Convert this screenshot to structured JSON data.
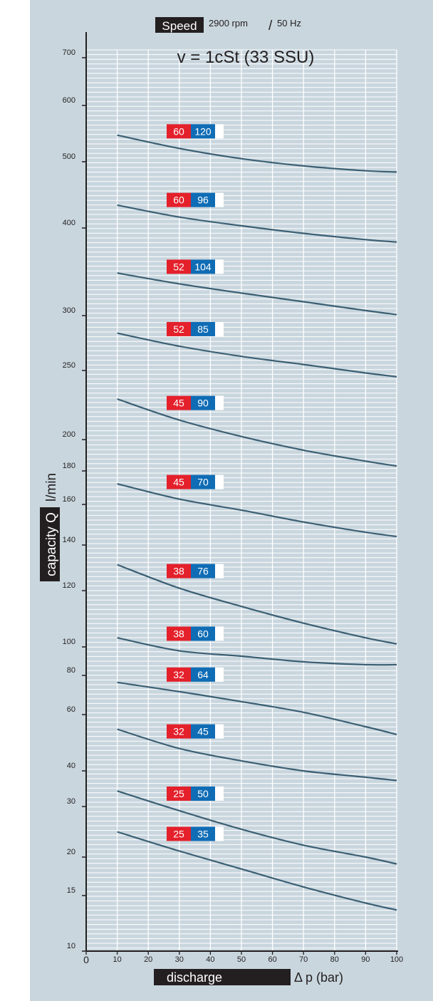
{
  "header": {
    "speed_label": "Speed",
    "speed_value": "2900 rpm",
    "separator": "/",
    "frequency": "50 Hz",
    "viscosity": "v = 1cSt (33 SSU)"
  },
  "axes": {
    "y_label_box": "capacity Q",
    "y_label_unit": "l/min",
    "x_label_box": "discharge",
    "x_label_rest": "Δ p (bar)"
  },
  "colors": {
    "background": "#c9d6de",
    "grid": "#ffffff",
    "curve": "#3b5f73",
    "badge_red": "#e4202b",
    "badge_blue": "#0f6cb5",
    "label_box": "#231f20"
  },
  "chart_data": {
    "type": "line",
    "title": "v = 1cSt (33 SSU)",
    "xlabel": "Δ p (bar)",
    "ylabel": "capacity Q l/min",
    "xlim": [
      0,
      100
    ],
    "x_ticks": [
      "0",
      "10",
      "20",
      "30",
      "40",
      "50",
      "60",
      "70",
      "80",
      "90",
      "100"
    ],
    "y_ticks": [
      {
        "label": "700",
        "value": 700
      },
      {
        "label": "600",
        "value": 600
      },
      {
        "label": "500",
        "value": 500
      },
      {
        "label": "400",
        "value": 400
      },
      {
        "label": "300",
        "value": 300
      },
      {
        "label": "250",
        "value": 250
      },
      {
        "label": "200",
        "value": 200
      },
      {
        "label": "180",
        "value": 180
      },
      {
        "label": "160",
        "value": 160
      },
      {
        "label": "140",
        "value": 140
      },
      {
        "label": "120",
        "value": 120
      },
      {
        "label": "100",
        "value": 100
      },
      {
        "label": "80",
        "value": 80
      },
      {
        "label": "60",
        "value": 60
      },
      {
        "label": "40",
        "value": 40
      },
      {
        "label": "30",
        "value": 30
      },
      {
        "label": "20",
        "value": 20
      },
      {
        "label": "15",
        "value": 15
      },
      {
        "label": "10",
        "value": 10
      }
    ],
    "grid": true,
    "series": [
      {
        "badge_red": "60",
        "badge_blue": "120",
        "x": [
          10,
          30,
          50,
          70,
          90,
          100
        ],
        "y": [
          545,
          522,
          505,
          493,
          485,
          483
        ]
      },
      {
        "badge_red": "60",
        "badge_blue": "96",
        "x": [
          10,
          30,
          50,
          70,
          90,
          100
        ],
        "y": [
          432,
          415,
          403,
          393,
          385,
          382
        ]
      },
      {
        "badge_red": "52",
        "badge_blue": "104",
        "x": [
          10,
          30,
          50,
          70,
          90,
          100
        ],
        "y": [
          345,
          333,
          323,
          314,
          305,
          301
        ]
      },
      {
        "badge_red": "52",
        "badge_blue": "85",
        "x": [
          10,
          30,
          50,
          70,
          90,
          100
        ],
        "y": [
          283,
          271,
          262,
          255,
          248,
          245
        ]
      },
      {
        "badge_red": "45",
        "badge_blue": "90",
        "x": [
          10,
          30,
          50,
          70,
          90,
          100
        ],
        "y": [
          228,
          213,
          202,
          193,
          186,
          183
        ]
      },
      {
        "badge_red": "45",
        "badge_blue": "70",
        "x": [
          10,
          30,
          50,
          70,
          90,
          100
        ],
        "y": [
          172,
          163,
          157,
          151,
          146,
          144
        ]
      },
      {
        "badge_red": "38",
        "badge_blue": "76",
        "x": [
          10,
          30,
          50,
          70,
          90,
          100
        ],
        "y": [
          131,
          121,
          114,
          108,
          103,
          101
        ]
      },
      {
        "badge_red": "38",
        "badge_blue": "60",
        "x": [
          10,
          30,
          50,
          70,
          90,
          100
        ],
        "y": [
          103,
          97,
          93,
          89,
          87,
          87
        ]
      },
      {
        "badge_red": "32",
        "badge_blue": "64",
        "x": [
          10,
          30,
          50,
          70,
          90,
          100
        ],
        "y": [
          76,
          71,
          66,
          61,
          55,
          52
        ]
      },
      {
        "badge_red": "32",
        "badge_blue": "45",
        "x": [
          10,
          30,
          50,
          70,
          90,
          100
        ],
        "y": [
          54,
          47,
          43,
          40,
          38,
          37
        ]
      },
      {
        "badge_red": "25",
        "badge_blue": "50",
        "x": [
          10,
          30,
          50,
          70,
          90,
          100
        ],
        "y": [
          34,
          29,
          25,
          22,
          20,
          19
        ]
      },
      {
        "badge_red": "25",
        "badge_blue": "35",
        "x": [
          10,
          30,
          50,
          70,
          90,
          100
        ],
        "y": [
          24.5,
          21,
          18.3,
          16,
          14.2,
          13.5
        ]
      }
    ]
  }
}
